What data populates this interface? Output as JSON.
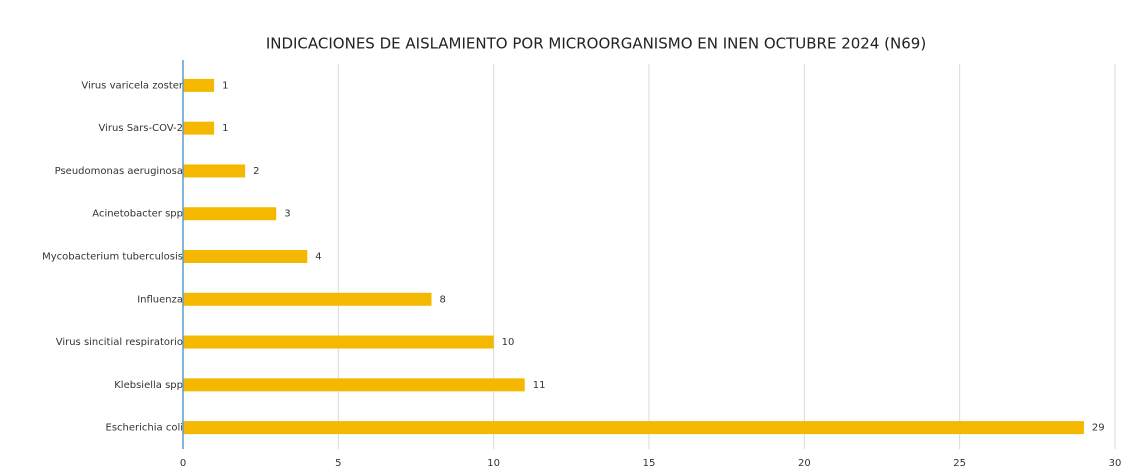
{
  "chart_data": {
    "type": "hbar",
    "title": "INDICACIONES DE AISLAMIENTO POR MICROORGANISMO EN INEN OCTUBRE 2024 (N69)",
    "categories": [
      "Virus varicela zoster",
      "Virus Sars-COV-2",
      "Pseudomonas aeruginosa",
      "Acinetobacter spp",
      "Mycobacterium tuberculosis",
      "Influenza",
      "Virus sincitial respiratorio",
      "Klebsiella spp",
      "Escherichia coli"
    ],
    "values": [
      1,
      1,
      2,
      3,
      4,
      8,
      10,
      11,
      29
    ],
    "color": "#f5b800",
    "xlim": [
      0,
      30
    ],
    "xticks": [
      0,
      5,
      10,
      15,
      20,
      25,
      30
    ],
    "grid": true
  }
}
